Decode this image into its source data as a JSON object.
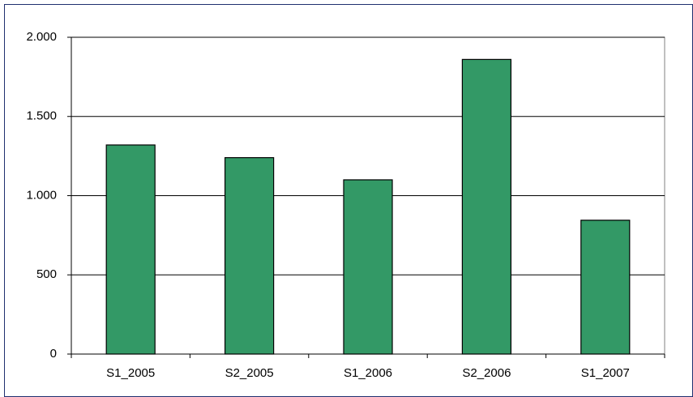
{
  "chart_data": {
    "type": "bar",
    "categories": [
      "S1_2005",
      "S2_2005",
      "S1_2006",
      "S2_2006",
      "S1_2007"
    ],
    "values": [
      1320,
      1240,
      1100,
      1860,
      845
    ],
    "color": "#339966",
    "ylim": [
      0,
      2000
    ],
    "yticks": [
      0,
      500,
      {
        "value": 1000,
        "label": "1.000"
      },
      {
        "value": 1500,
        "label": "1.500"
      },
      {
        "value": 2000,
        "label": "2.000"
      }
    ],
    "grid": true
  }
}
